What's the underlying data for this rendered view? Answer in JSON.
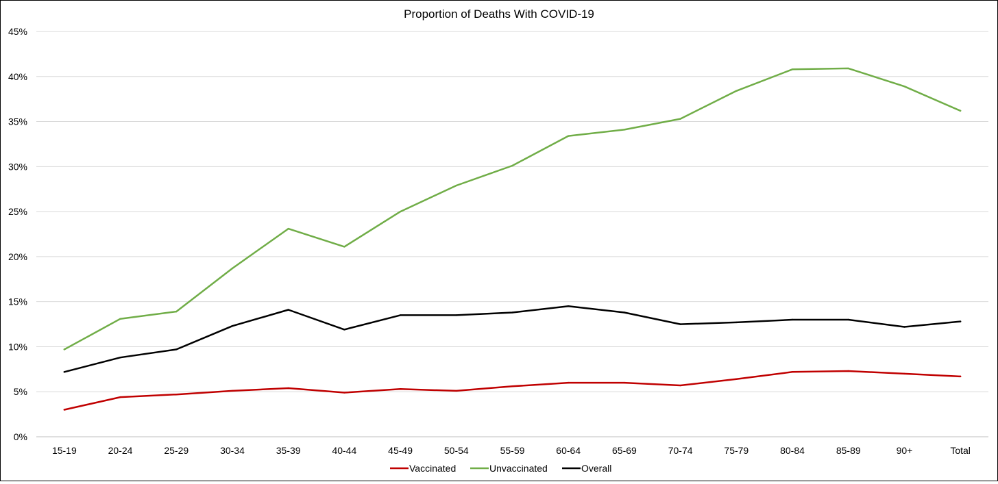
{
  "chart_data": {
    "type": "line",
    "title": "Proportion of Deaths With COVID-19",
    "xlabel": "",
    "ylabel": "",
    "ylim": [
      0,
      45
    ],
    "yticks": [
      0,
      5,
      10,
      15,
      20,
      25,
      30,
      35,
      40,
      45
    ],
    "ytick_labels": [
      "0%",
      "5%",
      "10%",
      "15%",
      "20%",
      "25%",
      "30%",
      "35%",
      "40%",
      "45%"
    ],
    "grid": true,
    "legend_position": "bottom",
    "categories": [
      "15-19",
      "20-24",
      "25-29",
      "30-34",
      "35-39",
      "40-44",
      "45-49",
      "50-54",
      "55-59",
      "60-64",
      "65-69",
      "70-74",
      "75-79",
      "80-84",
      "85-89",
      "90+",
      "Total"
    ],
    "series": [
      {
        "name": "Vaccinated",
        "color": "#c00000",
        "values": [
          3.0,
          4.4,
          4.7,
          5.1,
          5.4,
          4.9,
          5.3,
          5.1,
          5.6,
          6.0,
          6.0,
          5.7,
          6.4,
          7.2,
          7.3,
          7.0,
          6.7
        ]
      },
      {
        "name": "Unvaccinated",
        "color": "#70ad47",
        "values": [
          9.7,
          13.1,
          13.9,
          18.7,
          23.1,
          21.1,
          25.0,
          27.9,
          30.1,
          33.4,
          34.1,
          35.3,
          38.4,
          40.8,
          40.9,
          38.9,
          36.2
        ]
      },
      {
        "name": "Overall",
        "color": "#000000",
        "values": [
          7.2,
          8.8,
          9.7,
          12.3,
          14.1,
          11.9,
          13.5,
          13.5,
          13.8,
          14.5,
          13.8,
          12.5,
          12.7,
          13.0,
          13.0,
          12.2,
          12.8
        ]
      }
    ]
  }
}
